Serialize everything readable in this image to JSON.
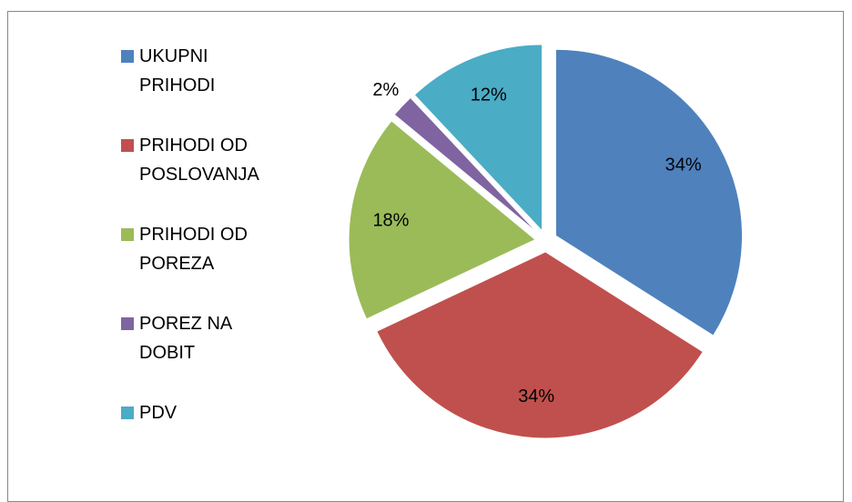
{
  "chart_data": {
    "type": "pie",
    "categories": [
      "UKUPNI PRIHODI",
      "PRIHODI OD POSLOVANJA",
      "PRIHODI OD POREZA",
      "POREZ NA DOBIT",
      "PDV"
    ],
    "values": [
      34,
      34,
      18,
      2,
      12
    ],
    "value_labels": [
      "34%",
      "34%",
      "18%",
      "2%",
      "12%"
    ],
    "colors": [
      "#4f81bd",
      "#c0504d",
      "#9bbb59",
      "#8064a2",
      "#4bacc6"
    ],
    "legend": "left"
  }
}
